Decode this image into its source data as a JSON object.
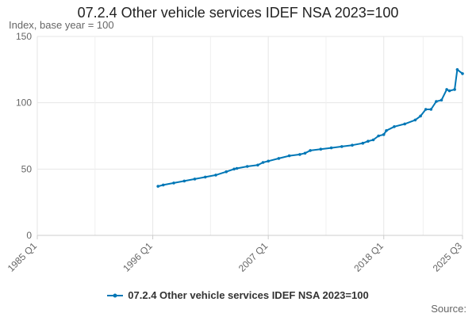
{
  "chart_data": {
    "type": "line",
    "title": "07.2.4 Other vehicle services IDEF NSA 2023=100",
    "ylabel": "Index, base year = 100",
    "xlabel": "",
    "ylim": [
      0,
      150
    ],
    "yticks": [
      0,
      50,
      100,
      150
    ],
    "xlim": [
      "1985 Q1",
      "2025 Q3"
    ],
    "xticks": [
      "1985 Q1",
      "1996 Q1",
      "2007 Q1",
      "2018 Q1",
      "2025 Q3"
    ],
    "grid": true,
    "legend_position": "bottom",
    "source_label": "Source:",
    "series": [
      {
        "name": "07.2.4 Other vehicle services IDEF NSA 2023=100",
        "color": "#0077b6",
        "x": [
          "1996 Q3",
          "1997 Q1",
          "1998 Q1",
          "1999 Q1",
          "2000 Q1",
          "2001 Q1",
          "2002 Q1",
          "2003 Q1",
          "2003 Q4",
          "2004 Q1",
          "2005 Q1",
          "2006 Q1",
          "2006 Q3",
          "2007 Q1",
          "2008 Q1",
          "2009 Q1",
          "2010 Q1",
          "2010 Q3",
          "2011 Q1",
          "2012 Q1",
          "2013 Q1",
          "2014 Q1",
          "2015 Q1",
          "2016 Q1",
          "2016 Q3",
          "2017 Q1",
          "2017 Q3",
          "2018 Q1",
          "2018 Q2",
          "2019 Q1",
          "2020 Q1",
          "2021 Q1",
          "2021 Q3",
          "2022 Q1",
          "2022 Q3",
          "2023 Q1",
          "2023 Q3",
          "2024 Q1",
          "2024 Q2",
          "2024 Q4",
          "2025 Q1",
          "2025 Q3"
        ],
        "y": [
          37,
          38,
          39.5,
          41,
          42.5,
          44,
          45.5,
          48,
          50,
          50.5,
          52,
          53,
          55,
          56,
          58,
          60,
          61,
          62,
          64,
          65,
          66,
          67,
          68,
          69.5,
          71,
          72,
          75,
          76,
          79,
          82,
          84,
          87,
          90,
          95,
          95,
          101,
          102,
          110,
          109,
          110,
          125,
          122
        ]
      }
    ]
  }
}
